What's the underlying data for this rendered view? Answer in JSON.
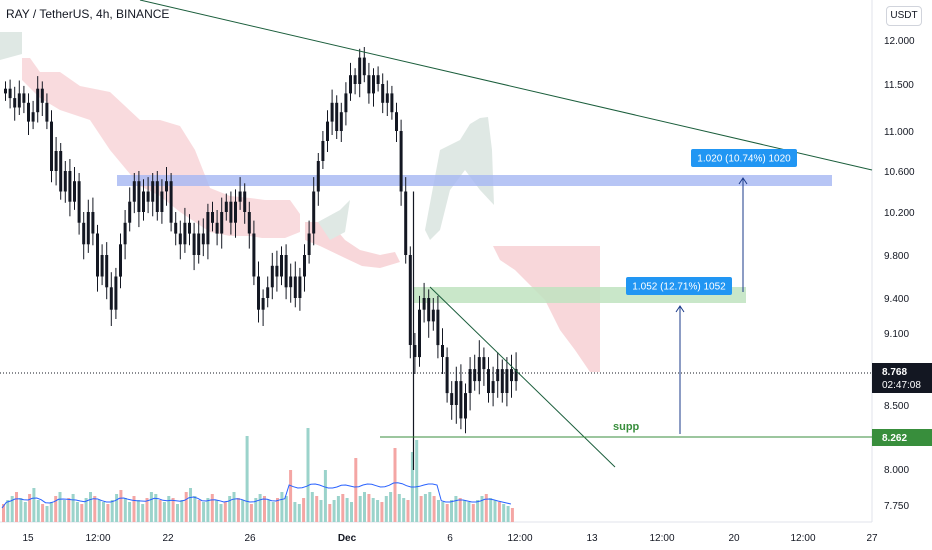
{
  "header": {
    "title": "RAY / TetherUS, 4h, BINANCE",
    "currency": "USDT"
  },
  "chart_data": {
    "type": "candlestick",
    "symbol": "RAY / TetherUS",
    "interval": "4h",
    "exchange": "BINANCE",
    "ylim": [
      7.62,
      12.25
    ],
    "y_ticks": [
      "12.000",
      "11.500",
      "11.000",
      "10.600",
      "10.200",
      "9.800",
      "9.400",
      "9.100",
      "8.500",
      "8.000",
      "7.750"
    ],
    "x_ticks": [
      "15",
      "12:00",
      "22",
      "26",
      "Dec",
      "6",
      "12:00",
      "13",
      "12:00",
      "20",
      "12:00",
      "27"
    ],
    "last_price": {
      "value": "8.768",
      "countdown": "02:47:08",
      "color": "#131722"
    },
    "support": {
      "label": "supp",
      "value": "8.262",
      "color": "#388e3c"
    },
    "measurements": [
      {
        "label": "1.020 (10.74%) 1020",
        "color": "#2196f3"
      },
      {
        "label": "1.052 (12.71%) 1052",
        "color": "#2196f3"
      }
    ],
    "zones": [
      {
        "name": "resistance-zone",
        "low": 10.45,
        "high": 10.55,
        "color": "#a5b6f3"
      },
      {
        "name": "target-zone",
        "low": 9.35,
        "high": 9.47,
        "color": "#bfe3bf"
      }
    ],
    "trendlines": [
      {
        "name": "descending-resistance",
        "color": "#1b5e3c"
      },
      {
        "name": "falling-wedge-line",
        "color": "#1b5e3c"
      }
    ],
    "colors": {
      "up": "#26a69a",
      "down": "#ef5350",
      "volume_ma": "#2962ff",
      "cloud_bear": "#f8d7da",
      "cloud_bull": "#dfe8e4"
    },
    "grid": false
  }
}
